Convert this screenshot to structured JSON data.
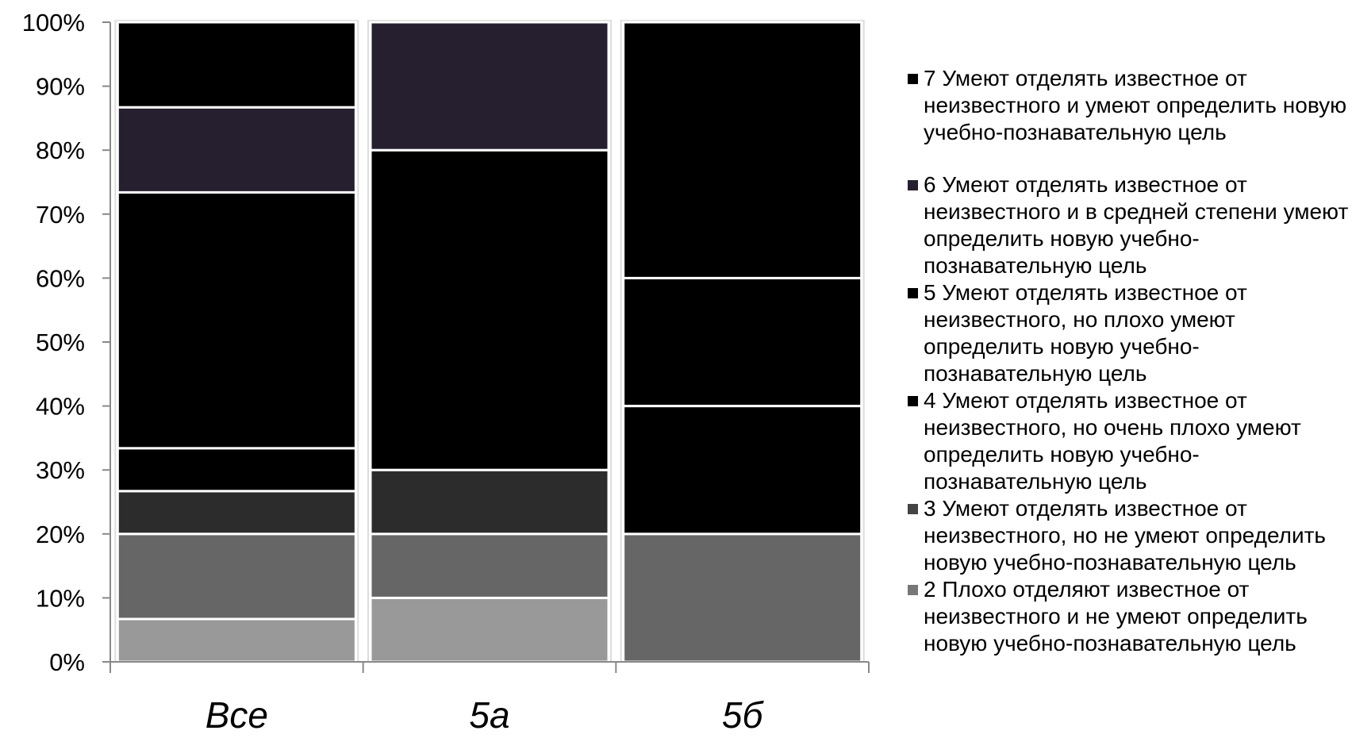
{
  "chart_data": {
    "type": "bar",
    "stacked": true,
    "percent": true,
    "categories": [
      "Все",
      "5а",
      "5б"
    ],
    "ylim": [
      0,
      100
    ],
    "yticks": [
      "0%",
      "10%",
      "20%",
      "30%",
      "40%",
      "50%",
      "60%",
      "70%",
      "80%",
      "90%",
      "100%"
    ],
    "grid": false,
    "legend_position": "right",
    "series": [
      {
        "name": "2  Плохо отделяют известное от неизвестного и не умеют определить новую учебно-познавательную цель",
        "color": "#999999",
        "values": [
          6.7,
          10,
          0
        ]
      },
      {
        "name": "3  Умеют отделять известное от неизвестного, но не умеют определить новую учебно-познавательную цель",
        "color": "#666666",
        "values": [
          13.3,
          10,
          20
        ]
      },
      {
        "name": "4  Умеют отделять известное от неизвестного, но очень плохо умеют определить новую учебно-познавательную цель",
        "color": "#2c2c2c",
        "values": [
          6.7,
          10,
          0
        ]
      },
      {
        "name": "5  Умеют отделять известное от неизвестного, но плохо умеют определить новую учебно-познавательную цель",
        "color": "#000000",
        "values": [
          6.7,
          0,
          20
        ]
      },
      {
        "name": "6  Умеют отделять известное от неизвестного и в средней степени умеют определить новую учебно-познавательную цель",
        "color": "#000000",
        "values": [
          40,
          50,
          20
        ]
      },
      {
        "name": "7  Умеют отделять известное от неизвестного и умеют определить новую учебно-познавательную цель",
        "color": "#261f30",
        "values": [
          13.3,
          20,
          0
        ]
      },
      {
        "name": "",
        "color": "#000000",
        "values": [
          13.3,
          0,
          40
        ]
      }
    ],
    "legend": [
      {
        "label": "7  Умеют отделять известное от неизвестного и умеют определить новую учебно-познавательную цель",
        "color": "#000000"
      },
      {
        "label": "6  Умеют отделять известное от неизвестного и в средней степени умеют определить новую учебно-познавательную цель",
        "color": "#261f30"
      },
      {
        "label": "5  Умеют отделять известное от неизвестного, но плохо умеют определить новую учебно-познавательную цель",
        "color": "#000000"
      },
      {
        "label": "4  Умеют отделять известное от неизвестного, но очень плохо умеют определить новую учебно-познавательную цель",
        "color": "#000000"
      },
      {
        "label": "3  Умеют отделять известное от неизвестного, но не умеют определить новую учебно-познавательную цель",
        "color": "#444444"
      },
      {
        "label": "2  Плохо отделяют известное от неизвестного и не умеют определить новую учебно-познавательную цель",
        "color": "#777777"
      }
    ]
  }
}
